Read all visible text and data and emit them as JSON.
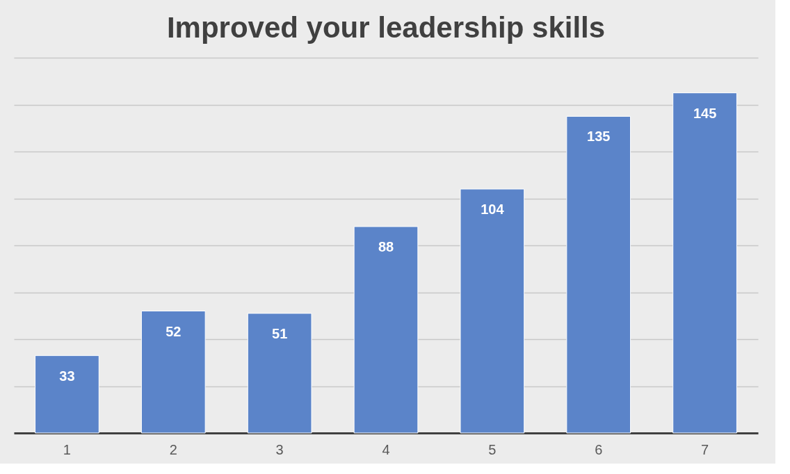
{
  "chart_data": {
    "type": "bar",
    "title": "Improved your leadership skills",
    "categories": [
      "1",
      "2",
      "3",
      "4",
      "5",
      "6",
      "7"
    ],
    "values": [
      33,
      52,
      51,
      88,
      104,
      135,
      145
    ],
    "color": "#5b84c9",
    "ylim": [
      0,
      160
    ],
    "yticks": [
      {
        "value": 0,
        "label": null
      },
      {
        "value": 20,
        "label": null
      },
      {
        "value": 40,
        "label": null
      },
      {
        "value": 60,
        "label": null
      },
      {
        "value": 80,
        "label": null
      },
      {
        "value": 100,
        "label": null
      },
      {
        "value": 120,
        "label": null
      },
      {
        "value": 140,
        "label": null
      },
      {
        "value": 160,
        "label": null
      }
    ],
    "grid": "y",
    "data_labels": true
  }
}
